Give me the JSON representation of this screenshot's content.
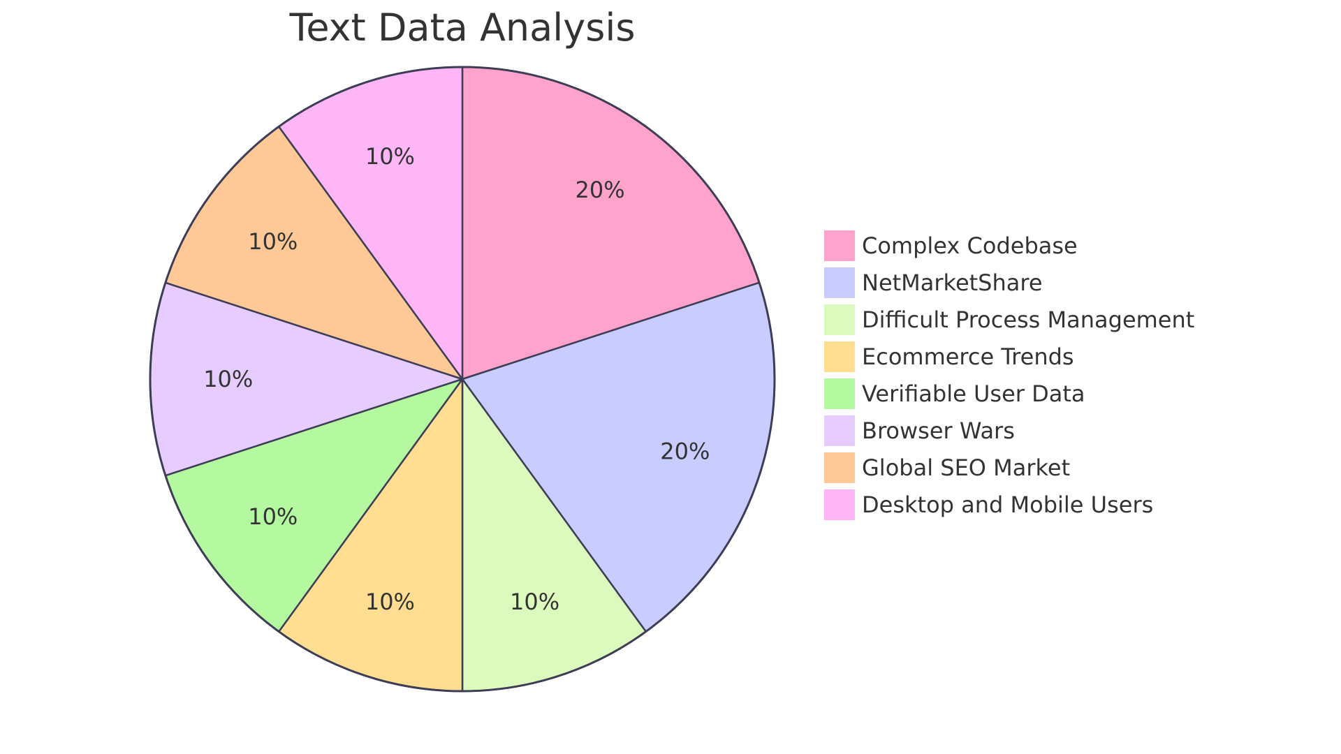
{
  "chart_data": {
    "type": "pie",
    "title": "Text Data Analysis",
    "legend_position": "right",
    "slices": [
      {
        "label": "Complex Codebase",
        "value": 20,
        "display": "20%",
        "color": "#FFA3CD"
      },
      {
        "label": "NetMarketShare",
        "value": 20,
        "display": "20%",
        "color": "#C9CCFF"
      },
      {
        "label": "Difficult Process Management",
        "value": 10,
        "display": "10%",
        "color": "#DCF9BE"
      },
      {
        "label": "Ecommerce Trends",
        "value": 10,
        "display": "10%",
        "color": "#FFDE92"
      },
      {
        "label": "Verifiable User Data",
        "value": 10,
        "display": "10%",
        "color": "#B4F8A0"
      },
      {
        "label": "Browser Wars",
        "value": 10,
        "display": "10%",
        "color": "#E6CCFF"
      },
      {
        "label": "Global SEO Market",
        "value": 10,
        "display": "10%",
        "color": "#FFC897"
      },
      {
        "label": "Desktop and Mobile Users",
        "value": 10,
        "display": "10%",
        "color": "#FFB6F7"
      }
    ]
  }
}
